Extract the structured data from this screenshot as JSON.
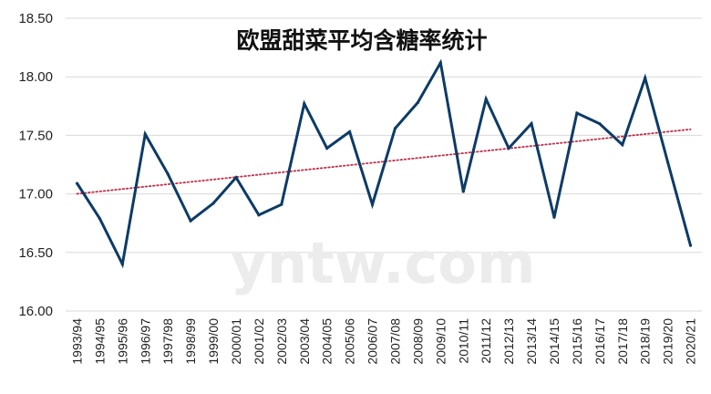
{
  "chart_data": {
    "type": "line",
    "title": "欧盟甜菜平均含糖率统计",
    "watermark": "yntw.com",
    "xlabel": "",
    "ylabel": "",
    "ylim": [
      16.0,
      18.5
    ],
    "yticks": [
      "16.00",
      "16.50",
      "17.00",
      "17.50",
      "18.00",
      "18.50"
    ],
    "grid": true,
    "legend": "none",
    "categories": [
      "1993/94",
      "1994/95",
      "1995/96",
      "1996/97",
      "1997/98",
      "1998/99",
      "1999/00",
      "2000/01",
      "2001/02",
      "2002/03",
      "2003/04",
      "2004/05",
      "2005/06",
      "2006/07",
      "2007/08",
      "2008/09",
      "2009/10",
      "2010/11",
      "2011/12",
      "2012/13",
      "2013/14",
      "2014/15",
      "2015/16",
      "2016/17",
      "2017/18",
      "2018/19",
      "2019/20",
      "2020/21"
    ],
    "series": [
      {
        "values": [
          17.09,
          16.79,
          16.4,
          17.51,
          17.17,
          16.77,
          16.92,
          17.14,
          16.82,
          16.91,
          17.77,
          17.39,
          17.53,
          16.91,
          17.56,
          17.78,
          18.12,
          17.02,
          17.81,
          17.39,
          17.6,
          16.8,
          17.69,
          17.6,
          17.42,
          17.99,
          17.27,
          16.56
        ],
        "color": "#0d3b66"
      }
    ],
    "trendline": {
      "type": "linear",
      "color": "#c0304a",
      "style": "dotted"
    },
    "colors": {
      "line": "#0d3b66",
      "trend": "#c0304a",
      "grid": "#d9d9d9"
    }
  }
}
